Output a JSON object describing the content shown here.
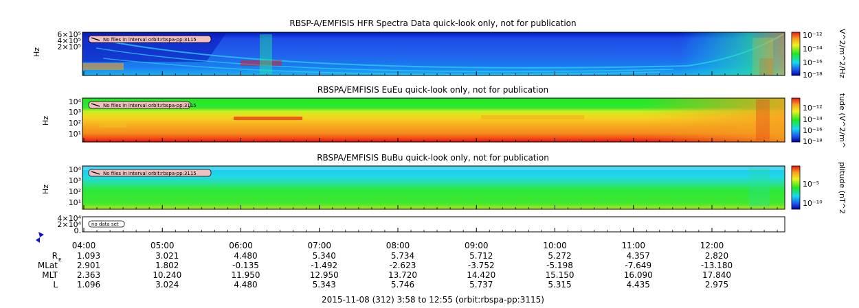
{
  "chart_data": [
    {
      "type": "heatmap",
      "title": "RBSP-A/EMFISIS  HFR Spectra Data quick-look only, not for publication",
      "ylabel": "Hz",
      "ytick_labels": [
        "6×10⁵",
        "4×10⁵",
        "2×10⁵"
      ],
      "colorbar_label": "V^2/m^2/Hz",
      "colorbar_tick_labels": [
        "10⁻¹²",
        "10⁻¹⁴",
        "10⁻¹⁶",
        "10⁻¹⁸"
      ],
      "annotation": "No files in interval orbit:rbspa-pp:3115"
    },
    {
      "type": "heatmap",
      "title": "RBSPA/EMFISIS  EuEu quick-look only, not for publication",
      "ylabel": "Hz",
      "ytick_labels": [
        "10⁴",
        "10³",
        "10²",
        "10¹"
      ],
      "colorbar_label": "tude (V^2/m^",
      "colorbar_tick_labels": [
        "10⁻¹²",
        "10⁻¹⁴",
        "10⁻¹⁶",
        "10⁻¹⁸"
      ],
      "annotation": "No files in interval orbit:rbspa-pp:3115"
    },
    {
      "type": "heatmap",
      "title": "RBSPA/EMFISIS  BuBu quick-look only, not for publication",
      "ylabel": "Hz",
      "ytick_labels": [
        "10⁴",
        "10³",
        "10²",
        "10¹"
      ],
      "colorbar_label": "plitude (nT^2",
      "colorbar_tick_labels": [
        "10⁻⁵",
        "10⁻¹⁰"
      ],
      "annotation": "No files in interval orbit:rbspa-pp:3115"
    },
    {
      "type": "line",
      "title": "",
      "ytick_labels": [
        "4×10⁴",
        "2×10⁴",
        "0."
      ],
      "annotation": "no data set"
    }
  ],
  "x_axis": {
    "time_labels": [
      "04:00",
      "05:00",
      "06:00",
      "07:00",
      "08:00",
      "09:00",
      "10:00",
      "11:00",
      "12:00"
    ],
    "ephemeris": [
      {
        "name": "R",
        "sub": "E",
        "values": [
          "1.093",
          "3.021",
          "4.480",
          "5.340",
          "5.734",
          "5.712",
          "5.272",
          "4.357",
          "2.820"
        ]
      },
      {
        "name": "MLat",
        "values": [
          "2.901",
          "1.802",
          "-0.135",
          "-1.492",
          "-2.623",
          "-3.752",
          "-5.198",
          "-7.649",
          "-13.180"
        ]
      },
      {
        "name": "MLT",
        "values": [
          "2.363",
          "10.240",
          "11.950",
          "12.950",
          "13.720",
          "14.420",
          "15.150",
          "16.090",
          "17.840"
        ]
      },
      {
        "name": "L",
        "values": [
          "1.096",
          "3.024",
          "4.480",
          "5.343",
          "5.746",
          "5.737",
          "5.315",
          "4.435",
          "2.975"
        ]
      }
    ],
    "footer": "2015-11-08 (312) 3:58 to 12:55 (orbit:rbspa-pp:3115)"
  },
  "colors": {
    "dark_blue": "#0000a0",
    "blue": "#1c4fe8",
    "cyan": "#18d8f0",
    "green": "#1de81d",
    "yellow": "#f0f020",
    "orange": "#f7a020",
    "red": "#e81818"
  }
}
